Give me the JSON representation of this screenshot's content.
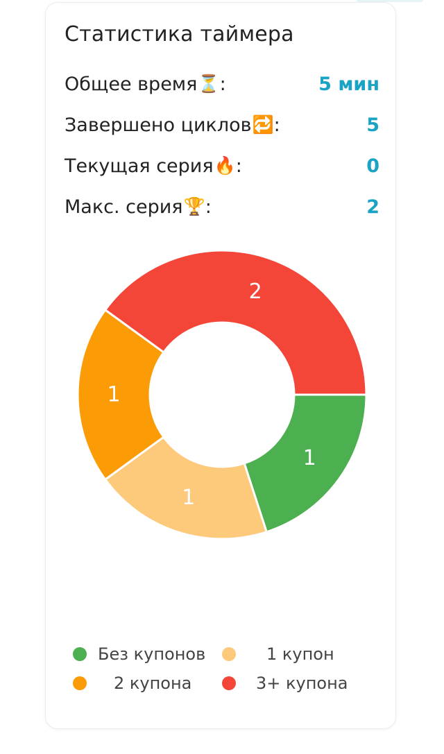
{
  "title": "Статистика таймера",
  "stats": [
    {
      "label": "Общее время",
      "emoji": "⏳",
      "value": "5 мин"
    },
    {
      "label": "Завершено циклов",
      "emoji": "🔁",
      "value": "5"
    },
    {
      "label": "Текущая серия",
      "emoji": "🔥",
      "value": "0"
    },
    {
      "label": "Макс. серия",
      "emoji": "🏆",
      "value": "2"
    }
  ],
  "chart_data": {
    "type": "pie",
    "donut": true,
    "categories": [
      "Без купонов",
      "1 купон",
      "2 купона",
      "3+ купона"
    ],
    "values": [
      1,
      1,
      1,
      2
    ],
    "colors": [
      "#4caf50",
      "#fdc97a",
      "#fb9b06",
      "#f44638"
    ],
    "data_labels": [
      "1",
      "1",
      "1",
      "2"
    ],
    "legend_position": "bottom"
  }
}
